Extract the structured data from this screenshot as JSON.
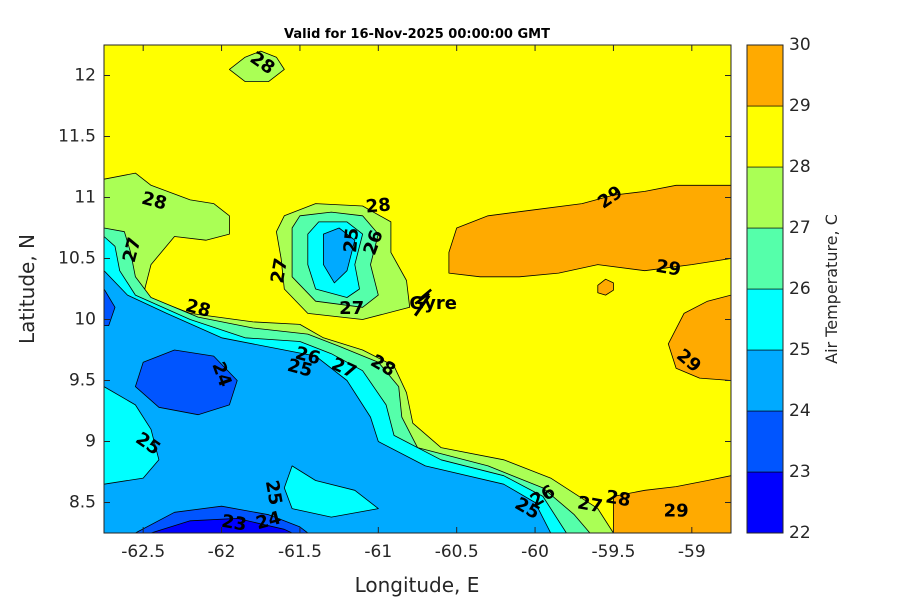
{
  "chart_data": {
    "type": "contour",
    "title": "Valid for 16-Nov-2025 00:00:00 GMT",
    "xlabel": "Longitude, E",
    "ylabel": "Latitude, N",
    "xlim": [
      -62.75,
      -58.75
    ],
    "ylim": [
      8.25,
      12.25
    ],
    "xticks": [
      -62.5,
      -62,
      -61.5,
      -61,
      -60.5,
      -60,
      -59.5,
      -59
    ],
    "xtick_labels": [
      "-62.5",
      "-62",
      "-61.5",
      "-61",
      "-60.5",
      "-60",
      "-59.5",
      "-59"
    ],
    "yticks": [
      8.5,
      9,
      9.5,
      10,
      10.5,
      11,
      11.5,
      12
    ],
    "ytick_labels": [
      "8.5",
      "9",
      "9.5",
      "10",
      "10.5",
      "11",
      "11.5",
      "12"
    ],
    "colorbar": {
      "label": "Air Temperature, C",
      "levels": [
        22,
        23,
        24,
        25,
        26,
        27,
        28,
        29,
        30
      ],
      "level_labels": [
        "22",
        "23",
        "24",
        "25",
        "26",
        "27",
        "28",
        "29",
        "30"
      ],
      "colors": [
        "#0000ff",
        "#0055ff",
        "#00aaff",
        "#00ffff",
        "#55ffaa",
        "#aaff55",
        "#ffff00",
        "#ffaa00",
        "#ff5500"
      ]
    },
    "background_level_index": 6,
    "regions": [
      {
        "level_index": 7,
        "points": [
          [
            -60.55,
            10.55
          ],
          [
            -60.5,
            10.75
          ],
          [
            -60.3,
            10.85
          ],
          [
            -60.0,
            10.9
          ],
          [
            -59.7,
            10.95
          ],
          [
            -59.5,
            11.02
          ],
          [
            -59.3,
            11.05
          ],
          [
            -59.1,
            11.1
          ],
          [
            -58.75,
            11.1
          ],
          [
            -58.75,
            10.5
          ],
          [
            -59.0,
            10.45
          ],
          [
            -59.3,
            10.4
          ],
          [
            -59.6,
            10.45
          ],
          [
            -59.85,
            10.38
          ],
          [
            -60.1,
            10.35
          ],
          [
            -60.35,
            10.35
          ],
          [
            -60.55,
            10.38
          ]
        ]
      },
      {
        "level_index": 7,
        "points": [
          [
            -59.6,
            10.28
          ],
          [
            -59.55,
            10.33
          ],
          [
            -59.5,
            10.3
          ],
          [
            -59.5,
            10.24
          ],
          [
            -59.55,
            10.2
          ],
          [
            -59.6,
            10.22
          ]
        ]
      },
      {
        "level_index": 7,
        "points": [
          [
            -58.75,
            10.2
          ],
          [
            -58.9,
            10.15
          ],
          [
            -59.05,
            10.05
          ],
          [
            -59.15,
            9.8
          ],
          [
            -59.1,
            9.6
          ],
          [
            -58.95,
            9.52
          ],
          [
            -58.75,
            9.5
          ]
        ]
      },
      {
        "level_index": 7,
        "points": [
          [
            -59.5,
            8.55
          ],
          [
            -59.3,
            8.6
          ],
          [
            -59.1,
            8.63
          ],
          [
            -58.9,
            8.68
          ],
          [
            -58.75,
            8.72
          ],
          [
            -58.75,
            8.25
          ],
          [
            -59.5,
            8.25
          ]
        ]
      },
      {
        "level_index": 5,
        "points": [
          [
            -61.95,
            12.05
          ],
          [
            -61.85,
            12.15
          ],
          [
            -61.75,
            12.2
          ],
          [
            -61.65,
            12.15
          ],
          [
            -61.6,
            12.05
          ],
          [
            -61.7,
            11.95
          ],
          [
            -61.85,
            11.95
          ]
        ]
      },
      {
        "level_index": 5,
        "points": [
          [
            -62.75,
            11.15
          ],
          [
            -62.55,
            11.2
          ],
          [
            -62.45,
            11.1
          ],
          [
            -62.2,
            10.98
          ],
          [
            -62.05,
            10.95
          ],
          [
            -61.95,
            10.85
          ],
          [
            -61.95,
            10.7
          ],
          [
            -62.1,
            10.65
          ],
          [
            -62.3,
            10.68
          ],
          [
            -62.45,
            10.45
          ],
          [
            -62.5,
            10.2
          ],
          [
            -62.2,
            10.05
          ],
          [
            -61.8,
            9.98
          ],
          [
            -61.5,
            9.96
          ],
          [
            -61.35,
            9.85
          ],
          [
            -61.1,
            9.75
          ],
          [
            -60.9,
            9.62
          ],
          [
            -60.82,
            9.4
          ],
          [
            -60.78,
            9.15
          ],
          [
            -60.6,
            8.95
          ],
          [
            -60.2,
            8.85
          ],
          [
            -59.9,
            8.7
          ],
          [
            -59.6,
            8.45
          ],
          [
            -59.5,
            8.25
          ],
          [
            -62.75,
            8.25
          ]
        ]
      },
      {
        "level_index": 5,
        "points": [
          [
            -61.65,
            10.72
          ],
          [
            -61.6,
            10.85
          ],
          [
            -61.4,
            10.95
          ],
          [
            -61.1,
            10.93
          ],
          [
            -60.92,
            10.8
          ],
          [
            -60.92,
            10.55
          ],
          [
            -60.82,
            10.32
          ],
          [
            -60.8,
            10.1
          ],
          [
            -61.1,
            10.0
          ],
          [
            -61.45,
            10.05
          ],
          [
            -61.6,
            10.25
          ],
          [
            -61.62,
            10.5
          ]
        ]
      },
      {
        "level_index": 4,
        "points": [
          [
            -62.75,
            10.75
          ],
          [
            -62.62,
            10.72
          ],
          [
            -62.58,
            10.55
          ],
          [
            -62.55,
            10.35
          ],
          [
            -62.45,
            10.18
          ],
          [
            -62.15,
            10.02
          ],
          [
            -61.8,
            9.93
          ],
          [
            -61.45,
            9.88
          ],
          [
            -61.25,
            9.78
          ],
          [
            -61.0,
            9.65
          ],
          [
            -60.87,
            9.45
          ],
          [
            -60.85,
            9.2
          ],
          [
            -60.75,
            8.95
          ],
          [
            -60.3,
            8.8
          ],
          [
            -59.95,
            8.62
          ],
          [
            -59.75,
            8.4
          ],
          [
            -59.65,
            8.25
          ],
          [
            -62.75,
            8.25
          ]
        ]
      },
      {
        "level_index": 4,
        "points": [
          [
            -61.55,
            10.75
          ],
          [
            -61.5,
            10.85
          ],
          [
            -61.3,
            10.88
          ],
          [
            -61.1,
            10.85
          ],
          [
            -61.0,
            10.7
          ],
          [
            -61.05,
            10.45
          ],
          [
            -61.0,
            10.2
          ],
          [
            -61.1,
            10.1
          ],
          [
            -61.4,
            10.15
          ],
          [
            -61.55,
            10.35
          ]
        ]
      },
      {
        "level_index": 3,
        "points": [
          [
            -62.75,
            10.68
          ],
          [
            -62.68,
            10.6
          ],
          [
            -62.65,
            10.4
          ],
          [
            -62.55,
            10.2
          ],
          [
            -62.2,
            10.0
          ],
          [
            -61.85,
            9.85
          ],
          [
            -61.5,
            9.82
          ],
          [
            -61.3,
            9.72
          ],
          [
            -61.1,
            9.58
          ],
          [
            -60.95,
            9.3
          ],
          [
            -60.9,
            9.05
          ],
          [
            -60.6,
            8.85
          ],
          [
            -60.2,
            8.72
          ],
          [
            -59.95,
            8.55
          ],
          [
            -59.8,
            8.25
          ],
          [
            -62.75,
            8.25
          ]
        ]
      },
      {
        "level_index": 3,
        "points": [
          [
            -61.45,
            10.7
          ],
          [
            -61.38,
            10.8
          ],
          [
            -61.2,
            10.8
          ],
          [
            -61.1,
            10.7
          ],
          [
            -61.15,
            10.45
          ],
          [
            -61.12,
            10.25
          ],
          [
            -61.2,
            10.18
          ],
          [
            -61.4,
            10.25
          ],
          [
            -61.45,
            10.45
          ]
        ]
      },
      {
        "level_index": 2,
        "points": [
          [
            -62.75,
            10.4
          ],
          [
            -62.6,
            10.2
          ],
          [
            -62.35,
            10.05
          ],
          [
            -62.0,
            9.85
          ],
          [
            -61.6,
            9.75
          ],
          [
            -61.4,
            9.7
          ],
          [
            -61.2,
            9.5
          ],
          [
            -61.05,
            9.2
          ],
          [
            -61.0,
            9.0
          ],
          [
            -60.7,
            8.8
          ],
          [
            -60.2,
            8.65
          ],
          [
            -60.0,
            8.5
          ],
          [
            -59.9,
            8.25
          ],
          [
            -62.75,
            8.25
          ]
        ]
      },
      {
        "level_index": 2,
        "points": [
          [
            -61.35,
            10.7
          ],
          [
            -61.25,
            10.75
          ],
          [
            -61.15,
            10.65
          ],
          [
            -61.2,
            10.4
          ],
          [
            -61.28,
            10.3
          ],
          [
            -61.35,
            10.45
          ]
        ]
      },
      {
        "level_index": 3,
        "points": [
          [
            -62.75,
            9.45
          ],
          [
            -62.55,
            9.3
          ],
          [
            -62.45,
            9.1
          ],
          [
            -62.4,
            8.85
          ],
          [
            -62.5,
            8.7
          ],
          [
            -62.75,
            8.65
          ]
        ]
      },
      {
        "level_index": 3,
        "points": [
          [
            -61.55,
            8.8
          ],
          [
            -61.4,
            8.68
          ],
          [
            -61.15,
            8.6
          ],
          [
            -61.0,
            8.45
          ],
          [
            -61.3,
            8.38
          ],
          [
            -61.55,
            8.45
          ],
          [
            -61.6,
            8.62
          ]
        ]
      },
      {
        "level_index": 1,
        "points": [
          [
            -62.75,
            10.25
          ],
          [
            -62.68,
            10.1
          ],
          [
            -62.72,
            9.95
          ],
          [
            -62.75,
            9.95
          ]
        ]
      },
      {
        "level_index": 1,
        "points": [
          [
            -62.5,
            9.65
          ],
          [
            -62.3,
            9.75
          ],
          [
            -62.05,
            9.7
          ],
          [
            -61.9,
            9.5
          ],
          [
            -61.95,
            9.3
          ],
          [
            -62.15,
            9.22
          ],
          [
            -62.4,
            9.28
          ],
          [
            -62.55,
            9.45
          ]
        ]
      },
      {
        "level_index": 1,
        "points": [
          [
            -62.55,
            8.25
          ],
          [
            -62.3,
            8.42
          ],
          [
            -62.0,
            8.47
          ],
          [
            -61.7,
            8.4
          ],
          [
            -61.5,
            8.3
          ],
          [
            -61.45,
            8.25
          ]
        ]
      },
      {
        "level_index": 0,
        "points": [
          [
            -62.45,
            8.25
          ],
          [
            -62.2,
            8.35
          ],
          [
            -61.9,
            8.37
          ],
          [
            -61.6,
            8.28
          ],
          [
            -61.55,
            8.25
          ]
        ]
      }
    ],
    "contour_labels": [
      {
        "text": "28",
        "x": -61.74,
        "y": 12.1,
        "angle": 35
      },
      {
        "text": "28",
        "x": -62.43,
        "y": 10.97,
        "angle": 15
      },
      {
        "text": "27",
        "x": -62.57,
        "y": 10.57,
        "angle": -75
      },
      {
        "text": "28",
        "x": -62.15,
        "y": 10.09,
        "angle": 15
      },
      {
        "text": "24",
        "x": -62.0,
        "y": 9.55,
        "angle": 70
      },
      {
        "text": "25",
        "x": -62.47,
        "y": 8.98,
        "angle": 35
      },
      {
        "text": "23",
        "x": -61.92,
        "y": 8.33,
        "angle": 10
      },
      {
        "text": "24",
        "x": -61.7,
        "y": 8.35,
        "angle": -15
      },
      {
        "text": "25",
        "x": -61.67,
        "y": 8.58,
        "angle": 80
      },
      {
        "text": "28",
        "x": -61.0,
        "y": 10.93,
        "angle": -5
      },
      {
        "text": "27",
        "x": -61.63,
        "y": 10.4,
        "angle": -80
      },
      {
        "text": "25",
        "x": -61.17,
        "y": 10.65,
        "angle": -85
      },
      {
        "text": "26",
        "x": -61.03,
        "y": 10.63,
        "angle": -70
      },
      {
        "text": "27",
        "x": -61.17,
        "y": 10.09,
        "angle": 0
      },
      {
        "text": "26",
        "x": -61.45,
        "y": 9.7,
        "angle": 15
      },
      {
        "text": "25",
        "x": -61.5,
        "y": 9.6,
        "angle": 15
      },
      {
        "text": "27",
        "x": -61.22,
        "y": 9.6,
        "angle": 25
      },
      {
        "text": "28",
        "x": -60.97,
        "y": 9.62,
        "angle": 30
      },
      {
        "text": "29",
        "x": -59.52,
        "y": 11.0,
        "angle": -35
      },
      {
        "text": "29",
        "x": -59.15,
        "y": 10.42,
        "angle": 10
      },
      {
        "text": "29",
        "x": -59.02,
        "y": 9.66,
        "angle": 40
      },
      {
        "text": "29",
        "x": -59.1,
        "y": 8.43,
        "angle": 0
      },
      {
        "text": "26",
        "x": -59.95,
        "y": 8.55,
        "angle": -30
      },
      {
        "text": "25",
        "x": -60.05,
        "y": 8.45,
        "angle": 30
      },
      {
        "text": "27",
        "x": -59.65,
        "y": 8.48,
        "angle": 10
      },
      {
        "text": "28",
        "x": -59.47,
        "y": 8.53,
        "angle": 10
      }
    ],
    "annotations": [
      {
        "text": "Gyre",
        "x": -60.65,
        "y": 10.13,
        "marker": "wind-barb-icon"
      }
    ]
  }
}
